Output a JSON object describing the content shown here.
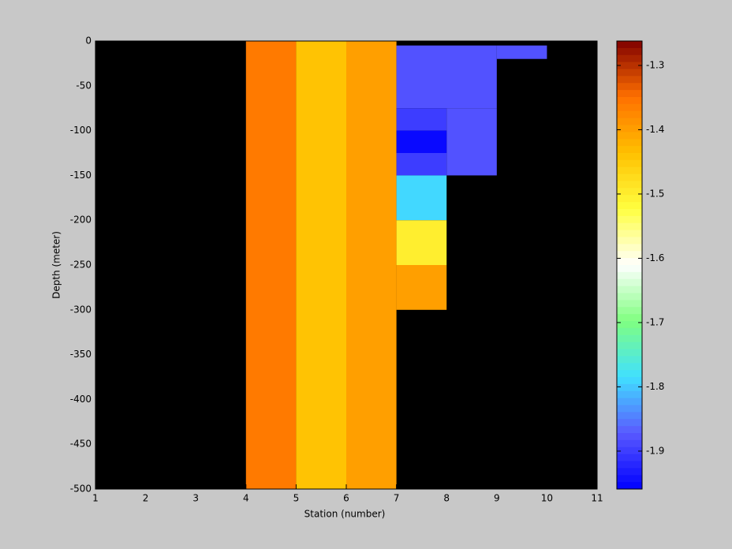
{
  "chart_data": {
    "type": "heatmap",
    "x_label": "Station (number)",
    "y_label": "Depth (meter)",
    "xlim": [
      1,
      11
    ],
    "xticks": [
      1,
      2,
      3,
      4,
      5,
      6,
      7,
      8,
      9,
      10,
      11
    ],
    "ylim": [
      -500,
      0
    ],
    "yticks": [
      -500,
      -450,
      -400,
      -350,
      -300,
      -250,
      -200,
      -150,
      -100,
      -50,
      0
    ],
    "background_color": "#000000",
    "clim": [
      -1.959,
      -1.262
    ],
    "cticks": [
      -1.9,
      -1.8,
      -1.7,
      -1.6,
      -1.5,
      -1.4,
      -1.3
    ],
    "colormap": [
      "#0000ff",
      "#5a5aff",
      "#40e0ff",
      "#80ff80",
      "#ffffff",
      "#ffff40",
      "#ffc000",
      "#ff7000",
      "#800000"
    ],
    "cells": [
      {
        "x": [
          4,
          5
        ],
        "depth": [
          0,
          -500
        ],
        "value": -1.36
      },
      {
        "x": [
          5,
          6
        ],
        "depth": [
          0,
          -500
        ],
        "value": -1.44
      },
      {
        "x": [
          6,
          7
        ],
        "depth": [
          0,
          -500
        ],
        "value": -1.4
      },
      {
        "x": [
          7,
          9
        ],
        "depth": [
          -5,
          -75
        ],
        "value": -1.88
      },
      {
        "x": [
          9,
          10
        ],
        "depth": [
          -5,
          -20
        ],
        "value": -1.88
      },
      {
        "x": [
          7,
          8
        ],
        "depth": [
          -75,
          -100
        ],
        "value": -1.9
      },
      {
        "x": [
          8,
          9
        ],
        "depth": [
          -75,
          -150
        ],
        "value": -1.88
      },
      {
        "x": [
          7,
          8
        ],
        "depth": [
          -100,
          -125
        ],
        "value": -1.95
      },
      {
        "x": [
          7,
          8
        ],
        "depth": [
          -125,
          -150
        ],
        "value": -1.9
      },
      {
        "x": [
          7,
          8
        ],
        "depth": [
          -150,
          -200
        ],
        "value": -1.79
      },
      {
        "x": [
          7,
          8
        ],
        "depth": [
          -200,
          -250
        ],
        "value": -1.5
      },
      {
        "x": [
          7,
          8
        ],
        "depth": [
          -250,
          -300
        ],
        "value": -1.4
      }
    ]
  }
}
